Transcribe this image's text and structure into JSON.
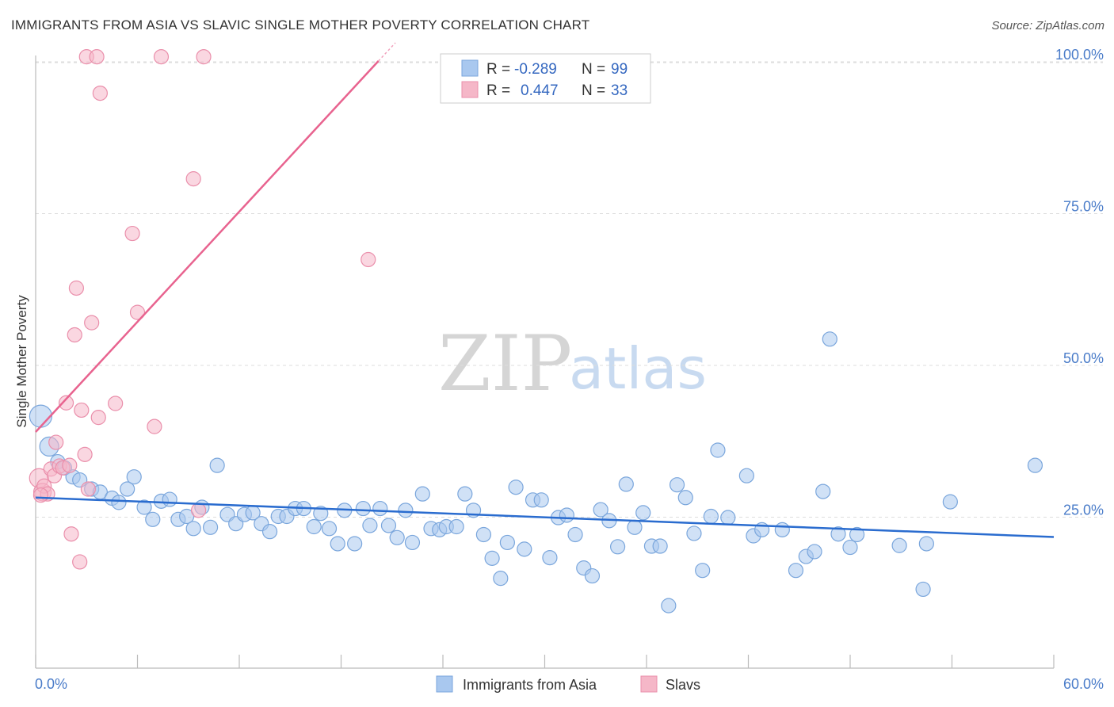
{
  "title": "IMMIGRANTS FROM ASIA VS SLAVIC SINGLE MOTHER POVERTY CORRELATION CHART",
  "source": "Source: ZipAtlas.com",
  "watermark": {
    "zip": "ZIP",
    "atlas": "atlas"
  },
  "colors": {
    "asia_fill": "#a9c8ef",
    "asia_stroke": "#7aa6dc",
    "asia_line": "#2a6ccf",
    "slavs_fill": "#f5b7c8",
    "slavs_stroke": "#ea8fab",
    "slavs_line": "#e8638f",
    "tick_text": "#4a7cc9",
    "grid": "#dddddd"
  },
  "legend": {
    "rows": [
      {
        "r_label": "R =",
        "r_value": "-0.289",
        "n_label": "N =",
        "n_value": "99"
      },
      {
        "r_label": "R =",
        "r_value": "0.447",
        "n_label": "N =",
        "n_value": "33"
      }
    ]
  },
  "chart_data": {
    "type": "scatter",
    "title": "IMMIGRANTS FROM ASIA VS SLAVIC SINGLE MOTHER POVERTY CORRELATION CHART",
    "xlabel": "",
    "ylabel": "Single Mother Poverty",
    "xlim": [
      0,
      60
    ],
    "ylim": [
      0,
      100
    ],
    "x_tick_labels": [
      "0.0%",
      "60.0%"
    ],
    "y_tick_labels": [
      "25.0%",
      "50.0%",
      "75.0%",
      "100.0%"
    ],
    "y_ticks": [
      25,
      50,
      75,
      100
    ],
    "grid": true,
    "legend_position": "top-center",
    "series": [
      {
        "name": "Immigrants from Asia",
        "r": -0.289,
        "n": 99,
        "trend": {
          "x": [
            0,
            60
          ],
          "y": [
            28.1,
            21.6
          ]
        },
        "points": [
          {
            "x": 0.3,
            "y": 41.5,
            "s": 14
          },
          {
            "x": 0.8,
            "y": 36.5,
            "s": 12
          },
          {
            "x": 1.3,
            "y": 34
          },
          {
            "x": 1.7,
            "y": 33
          },
          {
            "x": 2.2,
            "y": 31.5
          },
          {
            "x": 2.6,
            "y": 31
          },
          {
            "x": 3.3,
            "y": 29.5
          },
          {
            "x": 3.8,
            "y": 29
          },
          {
            "x": 4.5,
            "y": 28
          },
          {
            "x": 4.9,
            "y": 27.3
          },
          {
            "x": 5.4,
            "y": 29.5
          },
          {
            "x": 5.8,
            "y": 31.5
          },
          {
            "x": 6.4,
            "y": 26.5
          },
          {
            "x": 6.9,
            "y": 24.5
          },
          {
            "x": 7.4,
            "y": 27.5
          },
          {
            "x": 7.9,
            "y": 27.8
          },
          {
            "x": 8.4,
            "y": 24.5
          },
          {
            "x": 8.9,
            "y": 25
          },
          {
            "x": 9.3,
            "y": 23
          },
          {
            "x": 9.8,
            "y": 26.5
          },
          {
            "x": 10.3,
            "y": 23.2
          },
          {
            "x": 10.7,
            "y": 33.4
          },
          {
            "x": 11.3,
            "y": 25.3
          },
          {
            "x": 11.8,
            "y": 23.8
          },
          {
            "x": 12.3,
            "y": 25.3
          },
          {
            "x": 12.8,
            "y": 25.6
          },
          {
            "x": 13.3,
            "y": 23.8
          },
          {
            "x": 13.8,
            "y": 22.5
          },
          {
            "x": 14.3,
            "y": 25
          },
          {
            "x": 14.8,
            "y": 25
          },
          {
            "x": 15.3,
            "y": 26.3
          },
          {
            "x": 15.8,
            "y": 26.3
          },
          {
            "x": 16.4,
            "y": 23.3
          },
          {
            "x": 16.8,
            "y": 25.5
          },
          {
            "x": 17.3,
            "y": 23
          },
          {
            "x": 17.8,
            "y": 20.5
          },
          {
            "x": 18.2,
            "y": 26
          },
          {
            "x": 18.8,
            "y": 20.5
          },
          {
            "x": 19.3,
            "y": 26.3
          },
          {
            "x": 19.7,
            "y": 23.5
          },
          {
            "x": 20.3,
            "y": 26.3
          },
          {
            "x": 20.8,
            "y": 23.5
          },
          {
            "x": 21.3,
            "y": 21.5
          },
          {
            "x": 21.8,
            "y": 26
          },
          {
            "x": 22.2,
            "y": 20.7
          },
          {
            "x": 22.8,
            "y": 28.7
          },
          {
            "x": 23.3,
            "y": 23
          },
          {
            "x": 23.8,
            "y": 22.8
          },
          {
            "x": 24.2,
            "y": 23.3
          },
          {
            "x": 24.8,
            "y": 23.3
          },
          {
            "x": 25.3,
            "y": 28.7
          },
          {
            "x": 25.8,
            "y": 26
          },
          {
            "x": 26.4,
            "y": 22
          },
          {
            "x": 26.9,
            "y": 18.1
          },
          {
            "x": 27.4,
            "y": 14.8
          },
          {
            "x": 27.8,
            "y": 20.7
          },
          {
            "x": 28.3,
            "y": 29.8
          },
          {
            "x": 28.8,
            "y": 19.6
          },
          {
            "x": 29.3,
            "y": 27.7
          },
          {
            "x": 29.8,
            "y": 27.7
          },
          {
            "x": 30.3,
            "y": 18.2
          },
          {
            "x": 30.8,
            "y": 24.8
          },
          {
            "x": 31.3,
            "y": 25.2
          },
          {
            "x": 31.8,
            "y": 22
          },
          {
            "x": 32.3,
            "y": 16.5
          },
          {
            "x": 32.8,
            "y": 15.2
          },
          {
            "x": 33.3,
            "y": 26.1
          },
          {
            "x": 33.8,
            "y": 24.3
          },
          {
            "x": 34.3,
            "y": 20
          },
          {
            "x": 34.8,
            "y": 30.3
          },
          {
            "x": 35.3,
            "y": 23.2
          },
          {
            "x": 35.8,
            "y": 25.6
          },
          {
            "x": 36.3,
            "y": 20.1
          },
          {
            "x": 36.8,
            "y": 20.1
          },
          {
            "x": 37.3,
            "y": 10.3
          },
          {
            "x": 37.8,
            "y": 30.2
          },
          {
            "x": 38.3,
            "y": 28.1
          },
          {
            "x": 38.8,
            "y": 22.2
          },
          {
            "x": 39.3,
            "y": 16.1
          },
          {
            "x": 39.8,
            "y": 25
          },
          {
            "x": 40.2,
            "y": 35.9
          },
          {
            "x": 40.8,
            "y": 24.8
          },
          {
            "x": 41.9,
            "y": 31.7
          },
          {
            "x": 42.3,
            "y": 21.8
          },
          {
            "x": 42.8,
            "y": 22.8
          },
          {
            "x": 44,
            "y": 22.8
          },
          {
            "x": 44.8,
            "y": 16.1
          },
          {
            "x": 45.4,
            "y": 18.4
          },
          {
            "x": 45.9,
            "y": 19.2
          },
          {
            "x": 46.4,
            "y": 29.1
          },
          {
            "x": 46.8,
            "y": 54.2
          },
          {
            "x": 47.3,
            "y": 22.1
          },
          {
            "x": 48,
            "y": 19.9
          },
          {
            "x": 48.4,
            "y": 22
          },
          {
            "x": 50.9,
            "y": 20.2
          },
          {
            "x": 52.5,
            "y": 20.5
          },
          {
            "x": 52.3,
            "y": 13
          },
          {
            "x": 53.9,
            "y": 27.4
          },
          {
            "x": 58.9,
            "y": 33.4
          }
        ]
      },
      {
        "name": "Slavs",
        "r": 0.447,
        "n": 33,
        "trend": {
          "x": [
            0,
            20.2
          ],
          "y": [
            38.9,
            100
          ]
        },
        "points": [
          {
            "x": 0.2,
            "y": 31.3,
            "s": 12
          },
          {
            "x": 0.4,
            "y": 29,
            "s": 11
          },
          {
            "x": 0.5,
            "y": 30
          },
          {
            "x": 0.7,
            "y": 28.7
          },
          {
            "x": 0.9,
            "y": 32.8
          },
          {
            "x": 1.1,
            "y": 31.7
          },
          {
            "x": 1.2,
            "y": 37.2
          },
          {
            "x": 1.4,
            "y": 33.3
          },
          {
            "x": 1.6,
            "y": 33
          },
          {
            "x": 1.8,
            "y": 43.7
          },
          {
            "x": 2.0,
            "y": 33.4
          },
          {
            "x": 2.1,
            "y": 22.1
          },
          {
            "x": 2.3,
            "y": 54.9
          },
          {
            "x": 2.4,
            "y": 62.6
          },
          {
            "x": 2.6,
            "y": 17.5
          },
          {
            "x": 2.7,
            "y": 42.5
          },
          {
            "x": 2.9,
            "y": 35.2
          },
          {
            "x": 3.1,
            "y": 29.5
          },
          {
            "x": 3.3,
            "y": 56.9
          },
          {
            "x": 3.7,
            "y": 41.3
          },
          {
            "x": 3.8,
            "y": 94.7
          },
          {
            "x": 4.7,
            "y": 43.6
          },
          {
            "x": 5.7,
            "y": 71.6
          },
          {
            "x": 6.0,
            "y": 58.6
          },
          {
            "x": 7.0,
            "y": 39.8
          },
          {
            "x": 9.3,
            "y": 80.6
          },
          {
            "x": 9.6,
            "y": 26
          },
          {
            "x": 3.0,
            "y": 100.7
          },
          {
            "x": 3.6,
            "y": 100.7
          },
          {
            "x": 7.4,
            "y": 100.7
          },
          {
            "x": 9.9,
            "y": 100.7
          },
          {
            "x": 19.6,
            "y": 67.3
          },
          {
            "x": 0.3,
            "y": 28.5
          }
        ]
      }
    ]
  }
}
